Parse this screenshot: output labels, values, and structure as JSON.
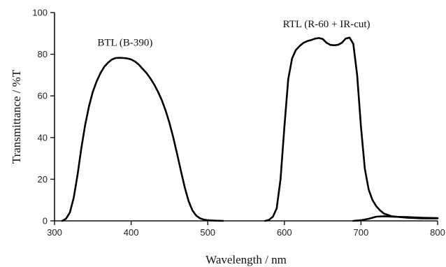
{
  "chart_data": {
    "type": "line",
    "xlabel": "Wavelength / nm",
    "ylabel": "Transmittance / %T",
    "xlim": [
      300,
      800
    ],
    "ylim": [
      0,
      100
    ],
    "xticks": [
      300,
      400,
      500,
      600,
      700,
      800
    ],
    "yticks": [
      0,
      20,
      40,
      60,
      80,
      100
    ],
    "grid": false,
    "annotations": [
      {
        "text": "BTL (B-390)",
        "x": 392,
        "y": 84
      },
      {
        "text": "RTL (R-60 + IR-cut)",
        "x": 655,
        "y": 93
      }
    ],
    "series": [
      {
        "x": [
          310,
          315,
          320,
          325,
          330,
          335,
          340,
          345,
          350,
          355,
          360,
          365,
          370,
          375,
          380,
          385,
          390,
          395,
          400,
          405,
          410,
          415,
          420,
          425,
          430,
          435,
          440,
          445,
          450,
          455,
          460,
          465,
          470,
          475,
          480,
          485,
          490,
          495,
          500,
          505,
          510,
          520
        ],
        "y": [
          0,
          1,
          4,
          11,
          22,
          35,
          46,
          55,
          62,
          67,
          71,
          74,
          76,
          77.5,
          78.2,
          78.3,
          78.2,
          78,
          77.5,
          76.5,
          75,
          73,
          71,
          68.5,
          65.5,
          62,
          58,
          53,
          47,
          40,
          32,
          24,
          16,
          9.5,
          5,
          2.5,
          1.2,
          0.6,
          0.3,
          0.2,
          0.1,
          0
        ]
      },
      {
        "x": [
          575,
          580,
          585,
          590,
          595,
          600,
          605,
          610,
          615,
          620,
          625,
          630,
          635,
          640,
          645,
          650,
          655,
          660,
          665,
          670,
          675,
          680,
          685,
          690,
          695,
          700,
          705,
          710,
          715,
          720,
          725,
          730,
          740,
          760,
          780,
          800
        ],
        "y": [
          0,
          0.5,
          2,
          6,
          20,
          45,
          68,
          78,
          82,
          84,
          85.5,
          86.3,
          86.8,
          87.5,
          87.8,
          87.3,
          85.5,
          84.5,
          84.3,
          84.5,
          85.5,
          87.5,
          88,
          85,
          70,
          45,
          25,
          15,
          10,
          7,
          5,
          3.5,
          2.2,
          1.5,
          1.2,
          1.2
        ]
      },
      {
        "x": [
          690,
          700,
          710,
          720,
          730,
          740,
          760,
          780,
          800
        ],
        "y": [
          0,
          0.3,
          1,
          2,
          2.2,
          2,
          1.8,
          1.5,
          1.3
        ]
      }
    ]
  }
}
